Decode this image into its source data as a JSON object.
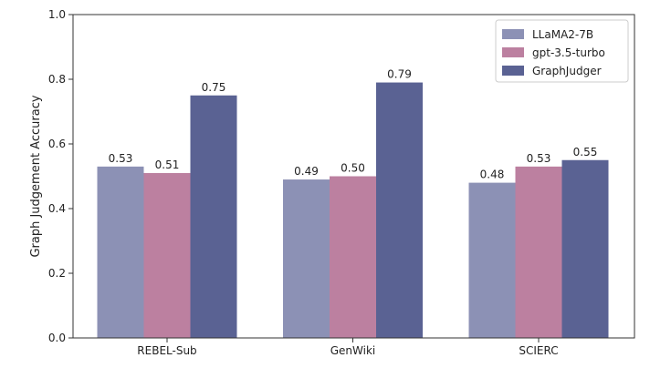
{
  "chart_data": {
    "type": "bar",
    "categories": [
      "REBEL-Sub",
      "GenWiki",
      "SCIERC"
    ],
    "series": [
      {
        "name": "LLaMA2-7B",
        "values": [
          0.53,
          0.49,
          0.48
        ],
        "labels": [
          "0.53",
          "0.49",
          "0.48"
        ],
        "color": "#8c91b5"
      },
      {
        "name": "gpt-3.5-turbo",
        "values": [
          0.51,
          0.5,
          0.53
        ],
        "labels": [
          "0.51",
          "0.50",
          "0.53"
        ],
        "color": "#bc80a0"
      },
      {
        "name": "GraphJudger",
        "values": [
          0.75,
          0.79,
          0.55
        ],
        "labels": [
          "0.75",
          "0.79",
          "0.55"
        ],
        "color": "#5a6293"
      }
    ],
    "ylabel": "Graph Judgement Accuracy",
    "xlabel": "",
    "ylim": [
      0.0,
      1.0
    ],
    "yticks": [
      0.0,
      0.2,
      0.4,
      0.6,
      0.8,
      1.0
    ],
    "ytick_labels": [
      "0.0",
      "0.2",
      "0.4",
      "0.6",
      "0.8",
      "1.0"
    ],
    "grid": false,
    "legend_position": "top-right"
  }
}
